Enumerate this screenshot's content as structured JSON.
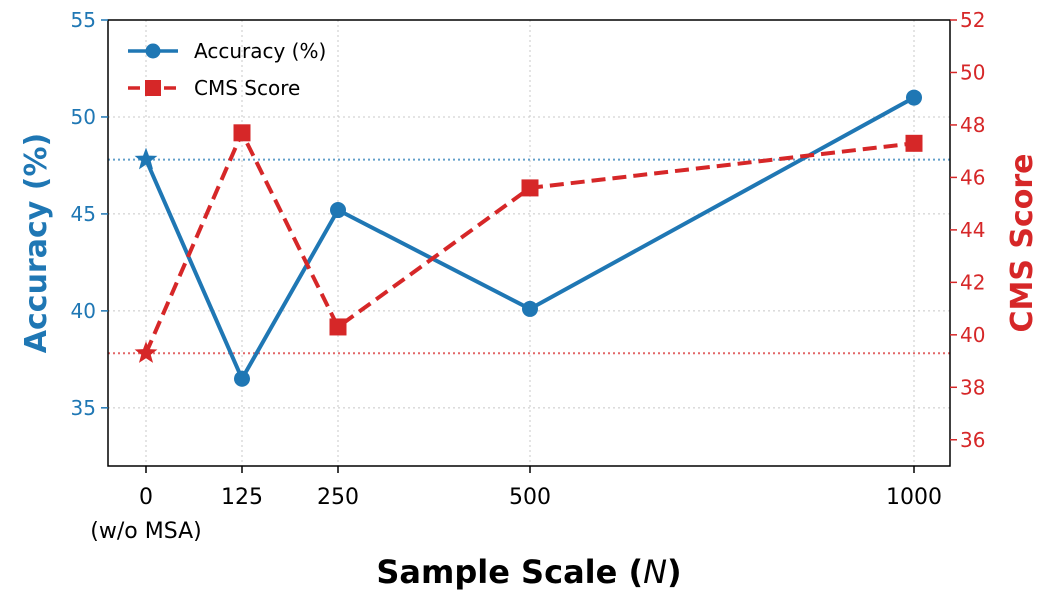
{
  "chart_data": {
    "type": "line",
    "xlabel_main": "Sample Scale (",
    "xlabel_var": "N",
    "xlabel_end": ")",
    "x": [
      0,
      125,
      250,
      500,
      1000
    ],
    "x_tick_labels": [
      "0",
      "125",
      "250",
      "500",
      "1000"
    ],
    "x_sub_label": "(w/o MSA)",
    "left_axis": {
      "label": "Accuracy (%)",
      "ylim": [
        32,
        55
      ],
      "ticks": [
        35,
        40,
        45,
        50,
        55
      ],
      "color": "#1f77b4"
    },
    "right_axis": {
      "label": "CMS Score",
      "ylim": [
        35,
        52
      ],
      "ticks": [
        36,
        38,
        40,
        42,
        44,
        46,
        48,
        50,
        52
      ],
      "color": "#d62728"
    },
    "series": [
      {
        "name": "Accuracy (%)",
        "axis": "left",
        "color": "#1f77b4",
        "linestyle": "solid",
        "marker": "circle",
        "first_marker": "star",
        "values": [
          47.8,
          36.5,
          45.2,
          40.1,
          51.0
        ]
      },
      {
        "name": "CMS Score",
        "axis": "right",
        "color": "#d62728",
        "linestyle": "dashed",
        "marker": "square",
        "first_marker": "star",
        "values": [
          39.3,
          47.7,
          40.3,
          45.6,
          47.3
        ]
      }
    ],
    "reference_lines": [
      {
        "axis": "left",
        "value": 47.8,
        "color": "#1f77b4",
        "style": "dotted"
      },
      {
        "axis": "right",
        "value": 39.3,
        "color": "#d62728",
        "style": "dotted"
      }
    ],
    "grid": true,
    "legend_position": "top-left"
  }
}
